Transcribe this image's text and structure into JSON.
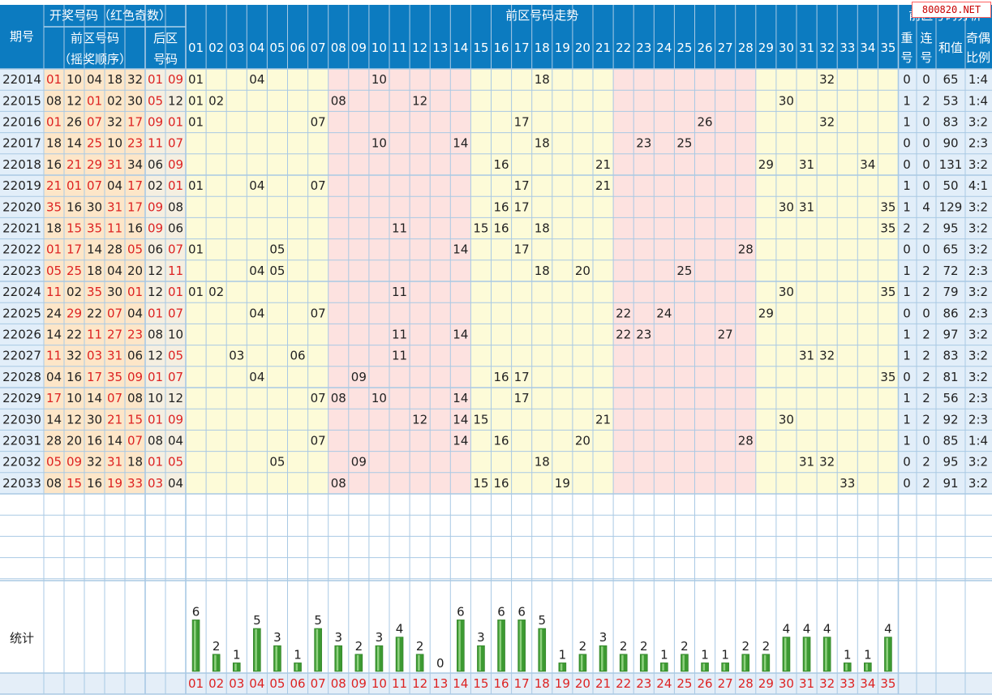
{
  "watermark": "800820.NET",
  "headers": {
    "period": "期号",
    "draw": "开奖号码（红色奇数）",
    "front": "前区号码",
    "front_sub": "（摇奖顺序）",
    "back": "后区",
    "back_sub": "号码",
    "trend": "前区号码走势",
    "analysis": "前区号码分析",
    "repeat": [
      "重",
      "号"
    ],
    "consec": [
      "连",
      "号"
    ],
    "sum": "和值",
    "ratio": [
      "奇偶",
      "比例"
    ],
    "stats": "统计"
  },
  "colors": {
    "header_bg": "#0c7bc0",
    "zone_yellow": "#fdfbd8",
    "zone_pink": "#fde2e0",
    "zone_blue": "#e2eef9",
    "grid": "#a9c9e4",
    "odd_red": "#dd2222",
    "bar_green": "#3d9a32"
  },
  "chart_data": {
    "type": "table",
    "title": "前区号码走势",
    "rows": [
      {
        "period": "22014",
        "front": [
          "01",
          "10",
          "04",
          "18",
          "32"
        ],
        "back": [
          "01",
          "09"
        ],
        "repeat": "0",
        "consec": "0",
        "sum": "65",
        "ratio": "1:4"
      },
      {
        "period": "22015",
        "front": [
          "08",
          "12",
          "01",
          "02",
          "30"
        ],
        "back": [
          "05",
          "12"
        ],
        "repeat": "1",
        "consec": "2",
        "sum": "53",
        "ratio": "1:4"
      },
      {
        "period": "22016",
        "front": [
          "01",
          "26",
          "07",
          "32",
          "17"
        ],
        "back": [
          "09",
          "01"
        ],
        "repeat": "1",
        "consec": "0",
        "sum": "83",
        "ratio": "3:2"
      },
      {
        "period": "22017",
        "front": [
          "18",
          "14",
          "25",
          "10",
          "23"
        ],
        "back": [
          "11",
          "07"
        ],
        "repeat": "0",
        "consec": "0",
        "sum": "90",
        "ratio": "2:3"
      },
      {
        "period": "22018",
        "front": [
          "16",
          "21",
          "29",
          "31",
          "34"
        ],
        "back": [
          "06",
          "09"
        ],
        "repeat": "0",
        "consec": "0",
        "sum": "131",
        "ratio": "3:2"
      },
      {
        "period": "22019",
        "front": [
          "21",
          "01",
          "07",
          "04",
          "17"
        ],
        "back": [
          "02",
          "01"
        ],
        "repeat": "1",
        "consec": "0",
        "sum": "50",
        "ratio": "4:1"
      },
      {
        "period": "22020",
        "front": [
          "35",
          "16",
          "30",
          "31",
          "17"
        ],
        "back": [
          "09",
          "08"
        ],
        "repeat": "1",
        "consec": "4",
        "sum": "129",
        "ratio": "3:2"
      },
      {
        "period": "22021",
        "front": [
          "18",
          "15",
          "35",
          "11",
          "16"
        ],
        "back": [
          "09",
          "06"
        ],
        "repeat": "2",
        "consec": "2",
        "sum": "95",
        "ratio": "3:2"
      },
      {
        "period": "22022",
        "front": [
          "01",
          "17",
          "14",
          "28",
          "05"
        ],
        "back": [
          "06",
          "07"
        ],
        "repeat": "0",
        "consec": "0",
        "sum": "65",
        "ratio": "3:2"
      },
      {
        "period": "22023",
        "front": [
          "05",
          "25",
          "18",
          "04",
          "20"
        ],
        "back": [
          "12",
          "11"
        ],
        "repeat": "1",
        "consec": "2",
        "sum": "72",
        "ratio": "2:3"
      },
      {
        "period": "22024",
        "front": [
          "11",
          "02",
          "35",
          "30",
          "01"
        ],
        "back": [
          "12",
          "01"
        ],
        "repeat": "1",
        "consec": "2",
        "sum": "79",
        "ratio": "3:2"
      },
      {
        "period": "22025",
        "front": [
          "24",
          "29",
          "22",
          "07",
          "04"
        ],
        "back": [
          "01",
          "07"
        ],
        "repeat": "0",
        "consec": "0",
        "sum": "86",
        "ratio": "2:3"
      },
      {
        "period": "22026",
        "front": [
          "14",
          "22",
          "11",
          "27",
          "23"
        ],
        "back": [
          "08",
          "10"
        ],
        "repeat": "1",
        "consec": "2",
        "sum": "97",
        "ratio": "3:2"
      },
      {
        "period": "22027",
        "front": [
          "11",
          "32",
          "03",
          "31",
          "06"
        ],
        "back": [
          "12",
          "05"
        ],
        "repeat": "1",
        "consec": "2",
        "sum": "83",
        "ratio": "3:2"
      },
      {
        "period": "22028",
        "front": [
          "04",
          "16",
          "17",
          "35",
          "09"
        ],
        "back": [
          "01",
          "07"
        ],
        "repeat": "0",
        "consec": "2",
        "sum": "81",
        "ratio": "3:2"
      },
      {
        "period": "22029",
        "front": [
          "17",
          "10",
          "14",
          "07",
          "08"
        ],
        "back": [
          "10",
          "12"
        ],
        "repeat": "1",
        "consec": "2",
        "sum": "56",
        "ratio": "2:3"
      },
      {
        "period": "22030",
        "front": [
          "14",
          "12",
          "30",
          "21",
          "15"
        ],
        "back": [
          "01",
          "09"
        ],
        "repeat": "1",
        "consec": "2",
        "sum": "92",
        "ratio": "2:3"
      },
      {
        "period": "22031",
        "front": [
          "28",
          "20",
          "16",
          "14",
          "07"
        ],
        "back": [
          "08",
          "04"
        ],
        "repeat": "1",
        "consec": "0",
        "sum": "85",
        "ratio": "1:4"
      },
      {
        "period": "22032",
        "front": [
          "05",
          "09",
          "32",
          "31",
          "18"
        ],
        "back": [
          "01",
          "05"
        ],
        "repeat": "0",
        "consec": "2",
        "sum": "95",
        "ratio": "3:2"
      },
      {
        "period": "22033",
        "front": [
          "08",
          "15",
          "16",
          "19",
          "33"
        ],
        "back": [
          "03",
          "04"
        ],
        "repeat": "0",
        "consec": "2",
        "sum": "91",
        "ratio": "3:2"
      }
    ],
    "trend_columns": [
      "01",
      "02",
      "03",
      "04",
      "05",
      "06",
      "07",
      "08",
      "09",
      "10",
      "11",
      "12",
      "13",
      "14",
      "15",
      "16",
      "17",
      "18",
      "19",
      "20",
      "21",
      "22",
      "23",
      "24",
      "25",
      "26",
      "27",
      "28",
      "29",
      "30",
      "31",
      "32",
      "33",
      "34",
      "35"
    ],
    "frequency": {
      "type": "bar",
      "categories": [
        "01",
        "02",
        "03",
        "04",
        "05",
        "06",
        "07",
        "08",
        "09",
        "10",
        "11",
        "12",
        "13",
        "14",
        "15",
        "16",
        "17",
        "18",
        "19",
        "20",
        "21",
        "22",
        "23",
        "24",
        "25",
        "26",
        "27",
        "28",
        "29",
        "30",
        "31",
        "32",
        "33",
        "34",
        "35"
      ],
      "values": [
        6,
        2,
        1,
        5,
        3,
        1,
        5,
        3,
        2,
        3,
        4,
        2,
        0,
        6,
        3,
        6,
        6,
        5,
        1,
        2,
        3,
        2,
        2,
        1,
        2,
        1,
        1,
        2,
        2,
        4,
        4,
        4,
        1,
        1,
        4
      ],
      "ylim": [
        0,
        6
      ]
    }
  }
}
